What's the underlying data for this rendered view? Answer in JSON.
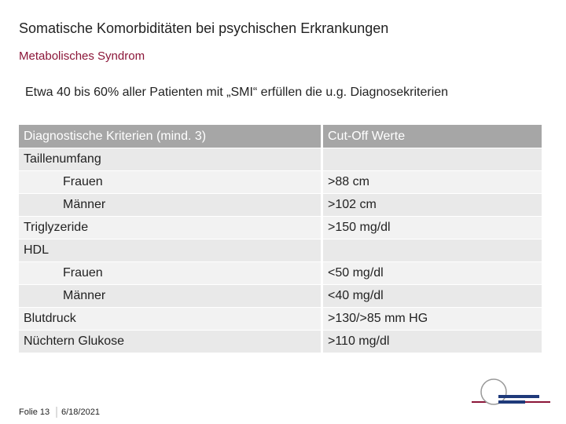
{
  "header": {
    "title": "Somatische Komorbiditäten bei psychischen Erkrankungen",
    "subtitle": "Metabolisches Syndrom"
  },
  "intro": "Etwa 40 bis 60% aller Patienten mit „SMI“ erfüllen die u.g. Diagnosekriterien",
  "table": {
    "columns": [
      "Diagnostische Kriterien (mind. 3)",
      "Cut-Off Werte"
    ],
    "rows": [
      [
        "Taillenumfang"
      ],
      [
        "Frauen",
        ">88 cm"
      ],
      [
        "Männer",
        ">102 cm"
      ],
      [
        "Triglyzeride",
        ">150 mg/dl"
      ],
      [
        "HDL"
      ],
      [
        "Frauen",
        "<50 mg/dl"
      ],
      [
        "Männer",
        "<40 mg/dl"
      ],
      [
        "Blutdruck",
        ">130/>85 mm HG"
      ],
      [
        "Nüchtern Glukose",
        ">110 mg/dl"
      ]
    ]
  },
  "footer": {
    "slide": "Folie 13",
    "date": "6/18/2021"
  }
}
